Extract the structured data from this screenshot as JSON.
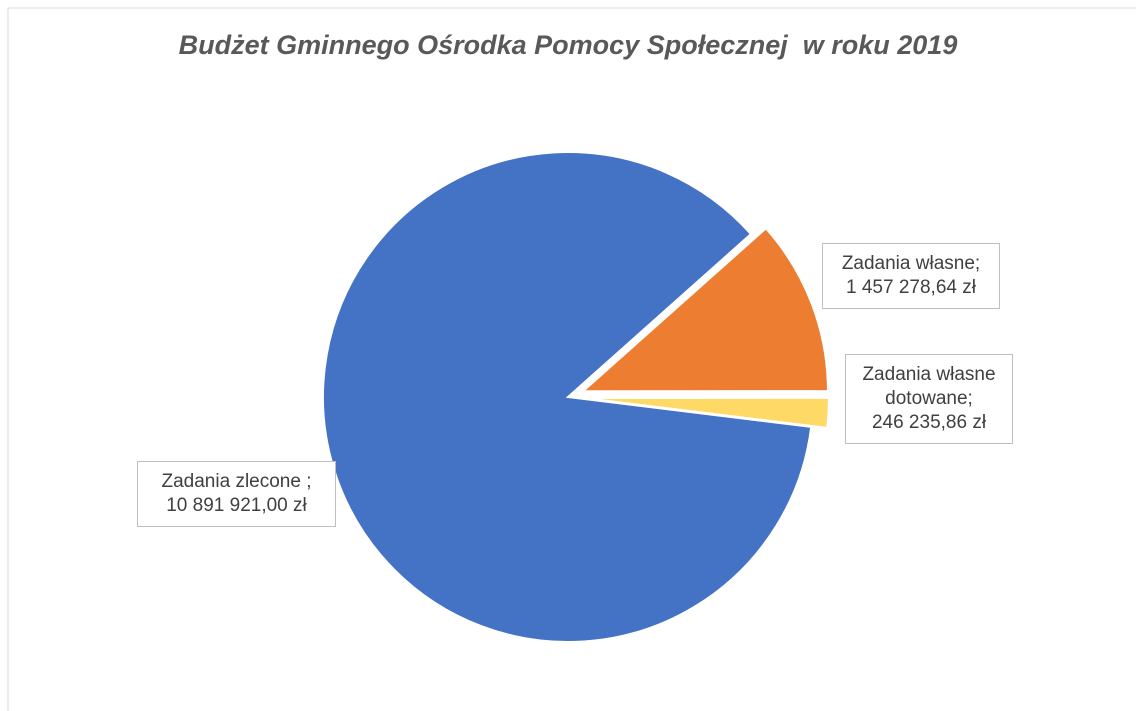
{
  "chart_data": {
    "type": "pie",
    "title": "Budżet Gminnego Ośrodka Pomocy Społecznej  w roku 2019",
    "categories": [
      "Zadania zlecone ;",
      "Zadania własne;",
      "Zadania własne dotowane;"
    ],
    "values": [
      10891921.0,
      1457278.64,
      246235.86
    ],
    "value_labels": [
      "10 891 921,00 zł",
      "1 457 278,64 zł",
      "246 235,86 zł"
    ],
    "colors": [
      "#4472c4",
      "#ed7d31",
      "#ffd966"
    ]
  }
}
